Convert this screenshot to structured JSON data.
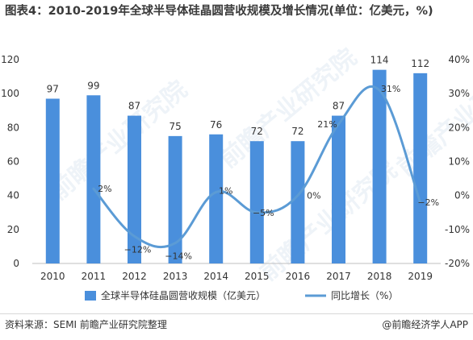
{
  "title": "图表4：2010-2019年全球半导体硅晶圆营收规模及增长情况(单位：亿美元，%)",
  "footer": {
    "source": "资料来源：SEMI 前瞻产业研究院整理",
    "credit": "@前瞻经济学人APP"
  },
  "watermark": "前瞻产业研究院",
  "colors": {
    "bar": "#4a8fdc",
    "line": "#5b9bd5",
    "text": "#333333",
    "grid": "#e6e6e6"
  },
  "chart_data": {
    "type": "bar",
    "categories": [
      "2010",
      "2011",
      "2012",
      "2013",
      "2014",
      "2015",
      "2016",
      "2017",
      "2018",
      "2019"
    ],
    "series": [
      {
        "name": "全球半导体硅晶圆营收规模（亿美元）",
        "type": "bar",
        "axis": "left",
        "values": [
          97,
          99,
          87,
          75,
          76,
          72,
          72,
          87,
          114,
          112
        ],
        "labels": [
          "97",
          "99",
          "87",
          "75",
          "76",
          "72",
          "72",
          "87",
          "114",
          "112"
        ]
      },
      {
        "name": "同比增长（%）",
        "type": "line",
        "axis": "right",
        "values": [
          null,
          2,
          -12,
          -14,
          1,
          -5,
          0,
          21,
          31,
          -2
        ],
        "labels": [
          "",
          "2%",
          "−12%",
          "−14%",
          "1%",
          "−5%",
          "0%",
          "21%",
          "31%",
          "−2%"
        ]
      }
    ],
    "y_left": {
      "min": 0,
      "max": 120,
      "ticks": [
        "0",
        "20",
        "40",
        "60",
        "80",
        "100",
        "120"
      ]
    },
    "y_right": {
      "min": -20,
      "max": 40,
      "ticks": [
        "-20%",
        "-10%",
        "0%",
        "10%",
        "20%",
        "30%",
        "40%"
      ]
    },
    "legend_position": "bottom",
    "grid": false
  }
}
